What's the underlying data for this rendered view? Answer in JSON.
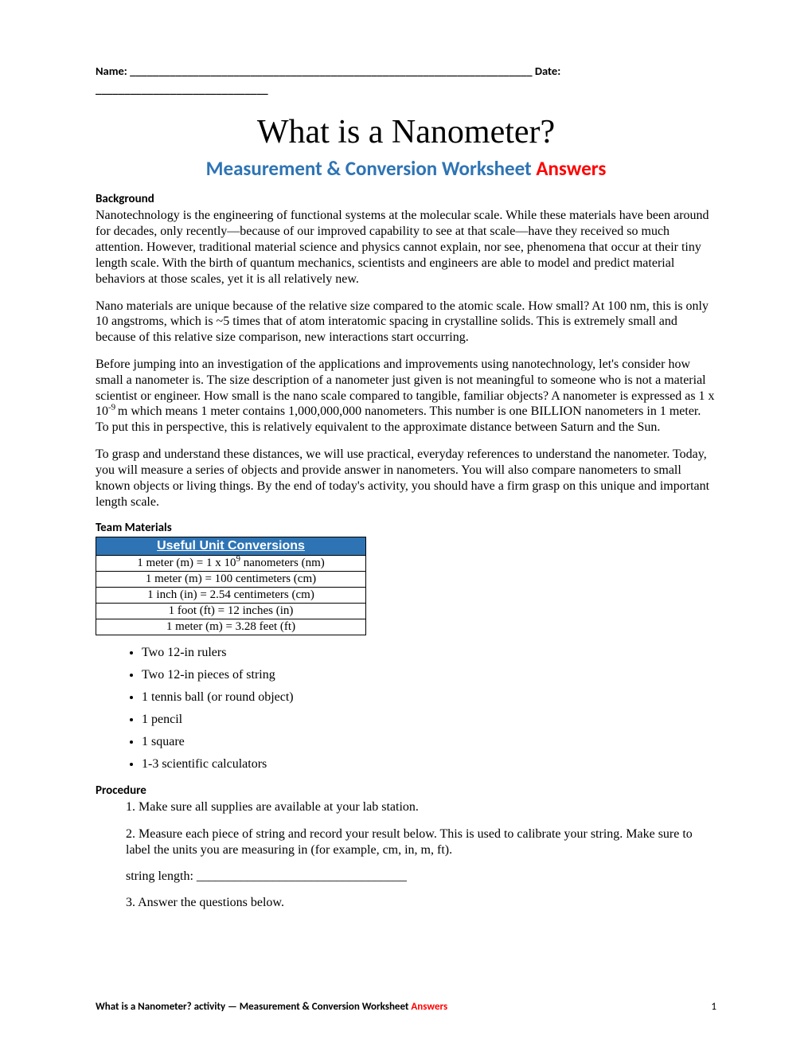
{
  "header": {
    "name_label": "Name:",
    "name_blank": " ______________________________________________________________________ ",
    "date_label": "Date:",
    "date_blank": "______________________________"
  },
  "title": "What is a Nanometer?",
  "subtitle": {
    "main": "Measurement & Conversion Worksheet ",
    "answers": "Answers"
  },
  "background_heading": "Background",
  "para1": "Nanotechnology is the engineering of functional systems at the molecular scale. While these materials have been around for decades, only recently—because of our improved capability to see at that scale—have they received so much attention. However, traditional material science and physics cannot explain, nor see, phenomena that occur at their tiny length scale. With the birth of quantum mechanics, scientists and engineers are able to model and predict material behaviors at those scales, yet it is all relatively new.",
  "para2": "Nano materials are unique because of the relative size compared to the atomic scale. How small? At 100 nm, this is only 10 angstroms, which is ~5 times that of atom interatomic spacing in crystalline solids. This is extremely small and because of this relative size comparison, new interactions start occurring.",
  "para3_a": "Before jumping into an investigation of the applications and improvements using nanotechnology, let's consider how small a nanometer is. The size description of a nanometer just given is not meaningful to someone who is not a material scientist or engineer. How small is the nano scale compared to tangible, familiar objects? A nanometer is expressed as 1 x 10",
  "para3_exp": "-9 ",
  "para3_b": "m which means 1 meter contains 1,000,000,000 nanometers. This number is one BILLION nanometers in 1 meter. To put this in perspective, this is relatively equivalent to the approximate distance between Saturn and the Sun.",
  "para4": "To grasp and understand these distances, we will use practical, everyday references to understand the nanometer. Today, you will measure a series of objects and provide answer in nanometers. You will also compare nanometers to small known objects or living things. By the end of today's activity, you should have a firm grasp on this unique and important length scale.",
  "materials_heading": "Team Materials",
  "table": {
    "header_main": "Useful Unit Conversion",
    "header_trail": "s",
    "header_bg": "#2e74b5",
    "header_fg": "#ffffff",
    "rows": [
      {
        "pre": "1 meter (m) = 1 x 10",
        "sup": "9",
        "post": " nanometers (nm)"
      },
      {
        "pre": "1 meter (m) = 100 centimeters (cm)",
        "sup": "",
        "post": ""
      },
      {
        "pre": "1 inch (in) = 2.54 centimeters (cm)",
        "sup": "",
        "post": ""
      },
      {
        "pre": "1 foot (ft) = 12 inches (in)",
        "sup": "",
        "post": ""
      },
      {
        "pre": "1 meter (m) = 3.28 feet (ft)",
        "sup": "",
        "post": ""
      }
    ]
  },
  "materials": [
    "Two 12-in rulers",
    "Two 12-in pieces of string",
    "1 tennis ball (or round object)",
    "1 pencil",
    "1 square",
    "1-3 scientific calculators"
  ],
  "procedure_heading": "Procedure",
  "proc1": "1.   Make sure all supplies are available at your lab station.",
  "proc2": "2.   Measure each piece of string and record your result below. This is used to calibrate your string. Make sure to label the units you are measuring in (for example, cm, in, m, ft).",
  "string_length": "string length: _________________________________",
  "proc3": "3.   Answer the questions below.",
  "footer": {
    "left_main": "What is a Nanometer? activity — Measurement & Conversion Worksheet ",
    "left_red": "Answers",
    "page": "1"
  }
}
